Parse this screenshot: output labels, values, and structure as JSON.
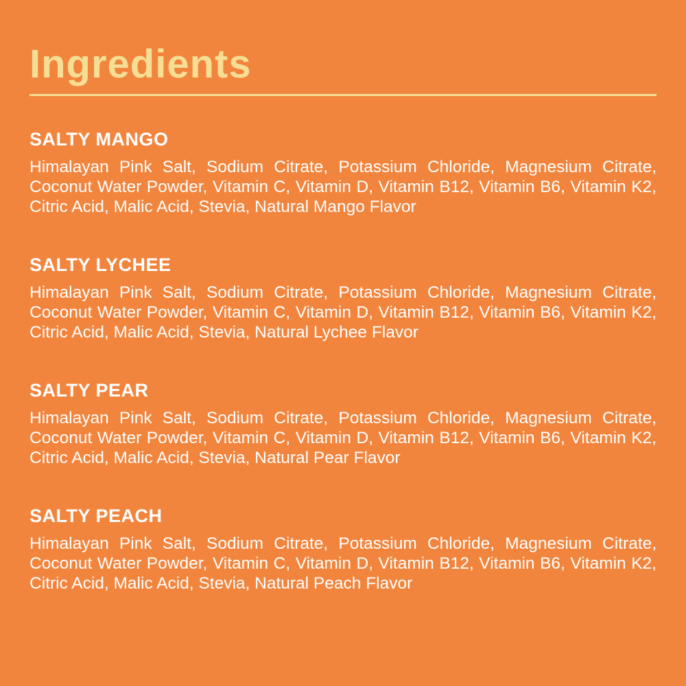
{
  "page": {
    "title": "Ingredients"
  },
  "colors": {
    "background": "#F2853D",
    "accent_yellow": "#F6DE95",
    "text_white": "#FFFFFF"
  },
  "sections": [
    {
      "heading": "SALTY MANGO",
      "ingredients": "Himalayan Pink Salt, Sodium Citrate, Potassium Chloride, Magnesium Citrate, Coconut Water Powder, Vitamin C, Vitamin D, Vitamin B12, Vitamin B6, Vitamin K2, Citric Acid, Malic Acid, Stevia, Natural Mango Flavor"
    },
    {
      "heading": "SALTY LYCHEE",
      "ingredients": "Himalayan Pink Salt, Sodium Citrate, Potassium Chloride, Magnesium Citrate, Coconut Water Powder, Vitamin C, Vitamin D, Vitamin B12, Vitamin B6, Vitamin K2, Citric Acid, Malic Acid, Stevia, Natural Lychee Flavor"
    },
    {
      "heading": "SALTY PEAR",
      "ingredients": "Himalayan Pink Salt, Sodium Citrate, Potassium Chloride, Magnesium Citrate, Coconut Water Powder, Vitamin C, Vitamin D, Vitamin B12, Vitamin B6, Vitamin K2, Citric Acid, Malic Acid, Stevia, Natural Pear Flavor"
    },
    {
      "heading": "SALTY PEACH",
      "ingredients": "Himalayan Pink Salt, Sodium Citrate, Potassium Chloride, Magnesium Citrate, Coconut Water Powder, Vitamin C, Vitamin D, Vitamin B12, Vitamin B6, Vitamin K2, Citric Acid, Malic Acid, Stevia, Natural Peach Flavor"
    }
  ]
}
